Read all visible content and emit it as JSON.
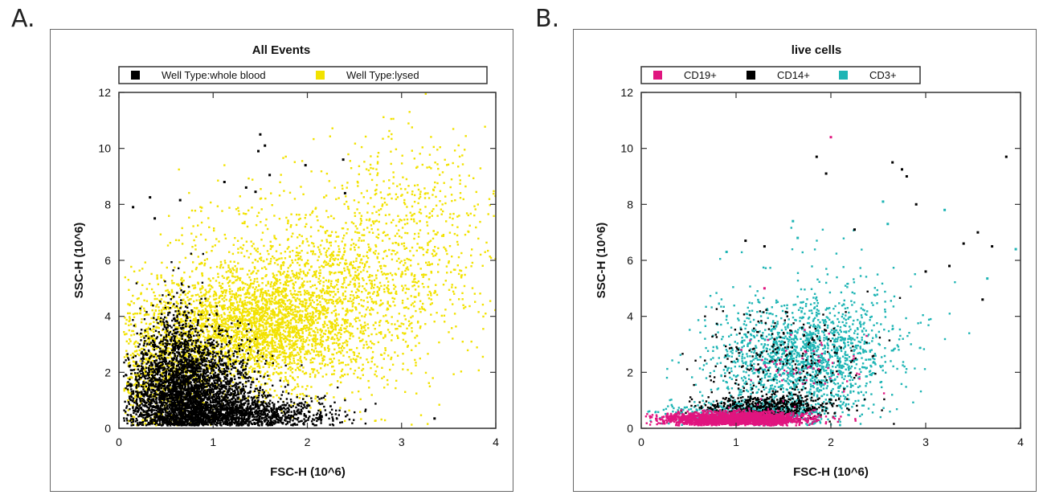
{
  "panels": {
    "a_label": "A.",
    "b_label": "B."
  },
  "chart_data": [
    {
      "type": "scatter",
      "title": "All Events",
      "xlabel": "FSC-H (10^6)",
      "ylabel": "SSC-H (10^6)",
      "xlim": [
        0,
        4
      ],
      "ylim": [
        0,
        12
      ],
      "xticks": [
        "0",
        "1",
        "2",
        "3",
        "4"
      ],
      "yticks": [
        "0",
        "2",
        "4",
        "6",
        "8",
        "10",
        "12"
      ],
      "legend_placement": "top",
      "series": [
        {
          "name": "Well Type:lysed",
          "color": "#f2e200",
          "draw_order": 1,
          "clusters": [
            {
              "center": [
                1.45,
                3.6
              ],
              "spread": [
                0.55,
                1.05
              ],
              "count": 2600
            },
            {
              "center": [
                2.4,
                5.0
              ],
              "spread": [
                0.65,
                1.8
              ],
              "count": 1200
            },
            {
              "center": [
                3.2,
                7.2
              ],
              "spread": [
                0.55,
                2.0
              ],
              "count": 420
            },
            {
              "center": [
                0.45,
                2.2
              ],
              "spread": [
                0.28,
                1.3
              ],
              "count": 900
            },
            {
              "center": [
                1.2,
                6.2
              ],
              "spread": [
                0.45,
                1.5
              ],
              "count": 160
            }
          ]
        },
        {
          "name": "Well Type:whole blood",
          "color": "#000000",
          "draw_order": 2,
          "clusters": [
            {
              "center": [
                0.72,
                1.3
              ],
              "spread": [
                0.33,
                1.0
              ],
              "count": 3200
            },
            {
              "center": [
                1.2,
                0.5
              ],
              "spread": [
                0.5,
                0.35
              ],
              "count": 1500
            },
            {
              "center": [
                0.6,
                3.3
              ],
              "spread": [
                0.12,
                0.9
              ],
              "count": 200
            }
          ],
          "outliers": [
            [
              0.15,
              7.9
            ],
            [
              0.33,
              8.25
            ],
            [
              0.38,
              7.5
            ],
            [
              0.65,
              8.15
            ],
            [
              1.12,
              8.8
            ],
            [
              1.5,
              10.5
            ],
            [
              1.55,
              10.1
            ],
            [
              1.48,
              9.9
            ],
            [
              1.6,
              9.05
            ],
            [
              1.35,
              8.6
            ],
            [
              1.45,
              8.45
            ],
            [
              1.98,
              9.4
            ],
            [
              2.38,
              9.6
            ],
            [
              2.4,
              8.4
            ],
            [
              3.35,
              0.35
            ]
          ]
        }
      ]
    },
    {
      "type": "scatter",
      "title": "live cells",
      "xlabel": "FSC-H (10^6)",
      "ylabel": "SSC-H (10^6)",
      "xlim": [
        0,
        4
      ],
      "ylim": [
        0,
        12
      ],
      "xticks": [
        "0",
        "1",
        "2",
        "3",
        "4"
      ],
      "yticks": [
        "0",
        "2",
        "4",
        "6",
        "8",
        "10",
        "12"
      ],
      "legend_placement": "top",
      "series": [
        {
          "name": "CD3+",
          "color": "#1fb5b5",
          "draw_order": 1,
          "clusters": [
            {
              "center": [
                1.65,
                2.5
              ],
              "spread": [
                0.45,
                0.95
              ],
              "count": 1400
            },
            {
              "center": [
                1.2,
                0.55
              ],
              "spread": [
                0.45,
                0.2
              ],
              "count": 700
            },
            {
              "center": [
                2.1,
                3.4
              ],
              "spread": [
                0.45,
                1.3
              ],
              "count": 300
            }
          ],
          "outliers": [
            [
              1.6,
              7.4
            ],
            [
              1.65,
              6.8
            ],
            [
              2.55,
              8.1
            ],
            [
              2.6,
              7.3
            ],
            [
              3.2,
              7.8
            ],
            [
              3.95,
              6.4
            ],
            [
              0.9,
              6.3
            ],
            [
              3.65,
              5.35
            ]
          ]
        },
        {
          "name": "CD14+",
          "color": "#000000",
          "draw_order": 2,
          "clusters": [
            {
              "center": [
                1.35,
                0.8
              ],
              "spread": [
                0.35,
                0.2
              ],
              "count": 500
            },
            {
              "center": [
                1.55,
                2.4
              ],
              "spread": [
                0.5,
                1.0
              ],
              "count": 260
            }
          ],
          "outliers": [
            [
              1.85,
              9.7
            ],
            [
              1.95,
              9.1
            ],
            [
              2.65,
              9.5
            ],
            [
              2.75,
              9.25
            ],
            [
              2.8,
              9.0
            ],
            [
              2.9,
              8.0
            ],
            [
              3.85,
              9.7
            ],
            [
              2.25,
              7.1
            ],
            [
              1.1,
              6.7
            ],
            [
              1.3,
              6.5
            ],
            [
              3.4,
              6.6
            ],
            [
              3.55,
              7.0
            ],
            [
              3.7,
              6.5
            ],
            [
              3.0,
              5.6
            ],
            [
              3.25,
              5.8
            ],
            [
              3.6,
              4.6
            ]
          ]
        },
        {
          "name": "CD19+",
          "color": "#e0157f",
          "draw_order": 3,
          "clusters": [
            {
              "center": [
                1.0,
                0.33
              ],
              "spread": [
                0.36,
                0.12
              ],
              "count": 2400
            },
            {
              "center": [
                1.7,
                2.2
              ],
              "spread": [
                0.35,
                0.7
              ],
              "count": 60
            }
          ],
          "outliers": [
            [
              2.0,
              10.4
            ],
            [
              1.3,
              5.0
            ]
          ]
        }
      ]
    }
  ]
}
